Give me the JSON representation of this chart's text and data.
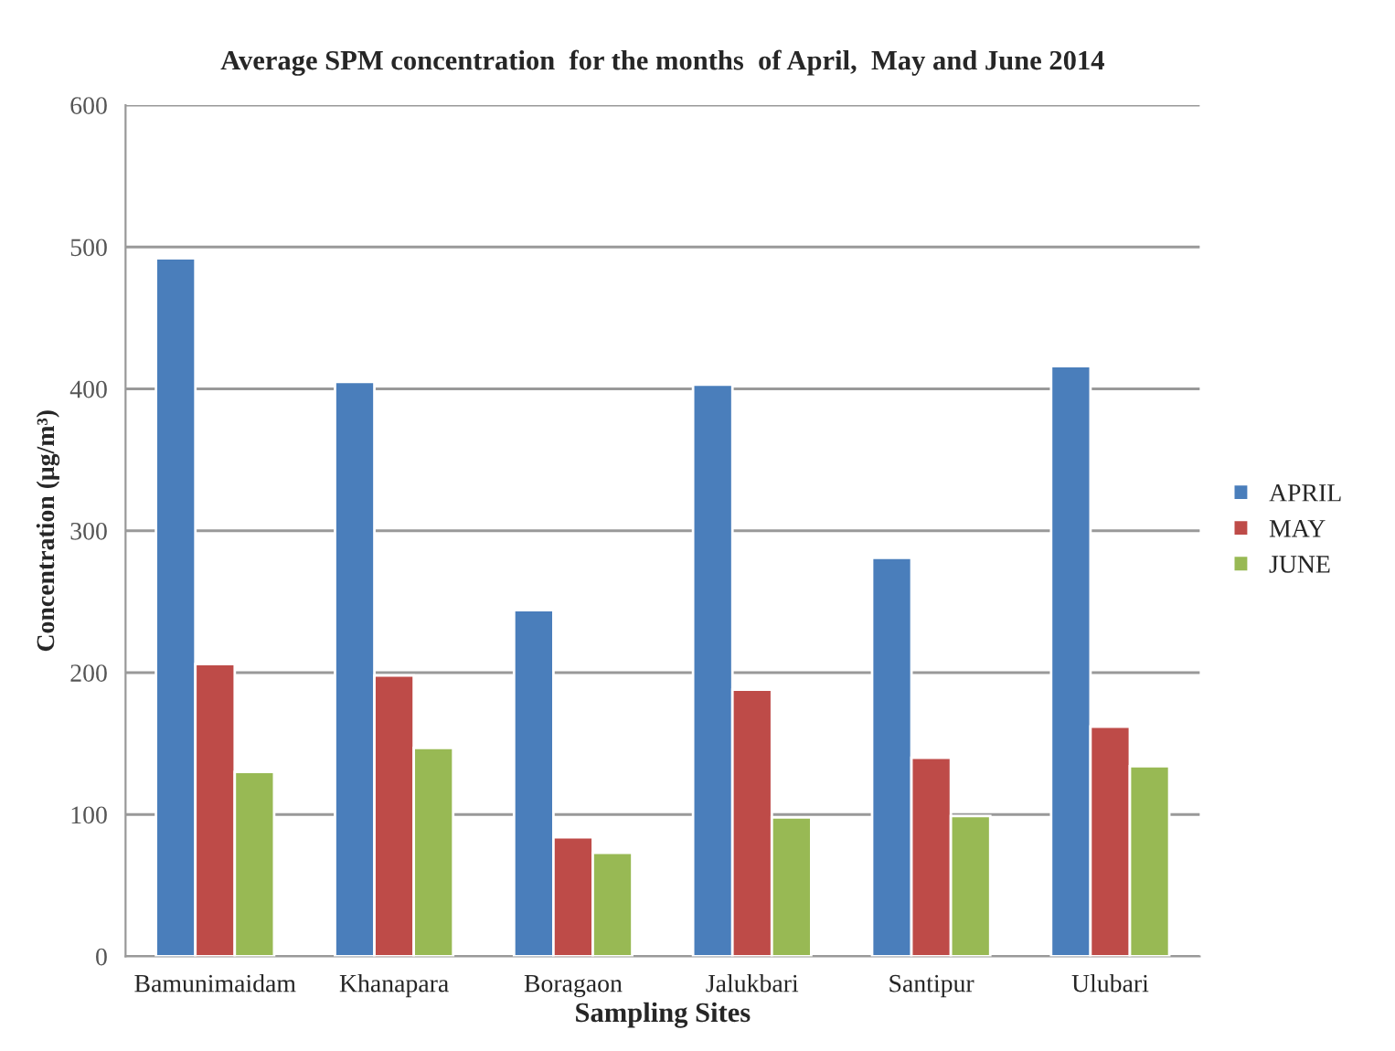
{
  "chart_data": {
    "type": "bar",
    "title": "Average SPM concentration  for the months  of April,  May and June 2014",
    "xlabel": "Sampling Sites",
    "ylabel": "Concentration (μg/m³)",
    "categories": [
      "Bamunimaidam",
      "Khanapara",
      "Boragaon",
      "Jalukbari",
      "Santipur",
      "Ulubari"
    ],
    "series": [
      {
        "name": "APRIL",
        "color": "#4a7ebb",
        "values": [
          492,
          405,
          244,
          403,
          281,
          416
        ]
      },
      {
        "name": "MAY",
        "color": "#be4b48",
        "values": [
          206,
          198,
          84,
          188,
          140,
          162
        ]
      },
      {
        "name": "JUNE",
        "color": "#98b954",
        "values": [
          130,
          147,
          73,
          98,
          99,
          134
        ]
      }
    ],
    "ylim": [
      0,
      600
    ],
    "yticks": [
      0,
      100,
      200,
      300,
      400,
      500,
      600
    ],
    "grid": "y",
    "legend": "right"
  }
}
